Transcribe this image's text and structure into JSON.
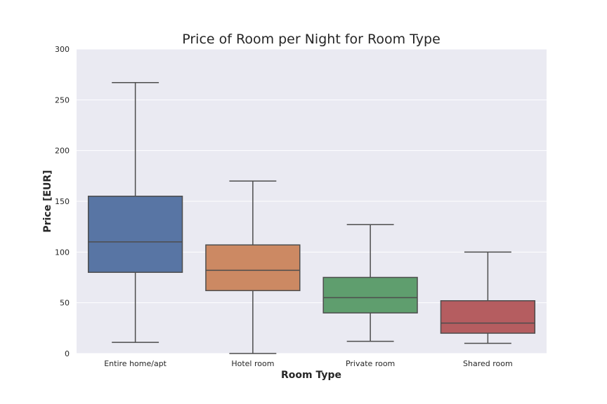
{
  "chart_data": {
    "type": "box",
    "title": "Price of Room per Night for Room Type",
    "xlabel": "Room Type",
    "ylabel": "Price [EUR]",
    "ylim": [
      0,
      300
    ],
    "yticks": [
      0,
      50,
      100,
      150,
      200,
      250,
      300
    ],
    "grid": true,
    "categories": [
      "Entire home/apt",
      "Hotel room",
      "Private room",
      "Shared room"
    ],
    "boxes": [
      {
        "category": "Entire home/apt",
        "whisker_low": 11,
        "q1": 80,
        "median": 110,
        "q3": 155,
        "whisker_high": 267,
        "color": "#5875a4"
      },
      {
        "category": "Hotel room",
        "whisker_low": 0,
        "q1": 62,
        "median": 82,
        "q3": 107,
        "whisker_high": 170,
        "color": "#cc8963"
      },
      {
        "category": "Private room",
        "whisker_low": 12,
        "q1": 40,
        "median": 55,
        "q3": 75,
        "whisker_high": 127,
        "color": "#5f9e6e"
      },
      {
        "category": "Shared room",
        "whisker_low": 10,
        "q1": 20,
        "median": 30,
        "q3": 52,
        "whisker_high": 100,
        "color": "#b55d60"
      }
    ],
    "colors": {
      "background": "#eaeaf2",
      "grid": "#ffffff",
      "line": "#4d4d4d"
    }
  }
}
